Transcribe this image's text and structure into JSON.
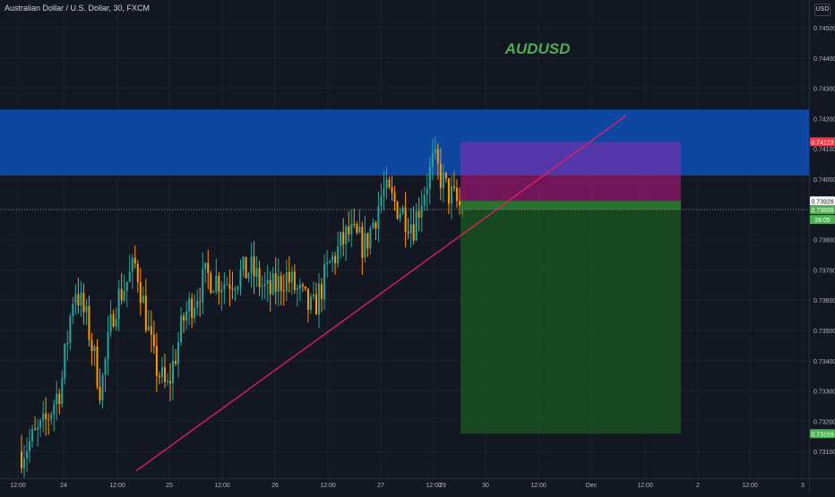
{
  "symbol_title": "Australian Dollar / U.S. Dollar, 30, FXCM",
  "currency": "USD",
  "annotation": "AUDUSD",
  "colors": {
    "background": "#131722",
    "grid": "#1e222d",
    "axis_text": "#b2b5be",
    "zone": "#0d47a1",
    "trendline": "#e91e63",
    "annotation": "#4caf50",
    "candle_up": "#26a69a",
    "candle_down": "#ff9800",
    "stop_zone": "#9c27b0",
    "stop_zone_overlap": "#880e4f",
    "target_zone": "#1b5e20",
    "target_zone_top": "#2e7d32",
    "stop_label": "#f23645",
    "entry_label": "#ffffff",
    "target_label": "#4caf50"
  },
  "chart_data": {
    "type": "candlestick",
    "symbol": "AUDUSD",
    "timeframe": "30",
    "x_tick_labels": [
      "12:00",
      "24",
      "12:00",
      "25",
      "12:00",
      "26",
      "12:00",
      "27",
      "12:00",
      "29",
      "30",
      "12:00",
      "Dec",
      "12:00",
      "2",
      "12:00",
      "3"
    ],
    "y_tick_labels": [
      "0.74500",
      "0.74400",
      "0.74300",
      "0.74200",
      "0.74100",
      "0.74000",
      "0.73900",
      "0.73800",
      "0.73700",
      "0.73600",
      "0.73500",
      "0.73400",
      "0.73300",
      "0.73200",
      "0.73100"
    ],
    "ylim": [
      0.7306,
      0.7456
    ],
    "price_trend": [
      [
        0,
        0.731
      ],
      [
        0.05,
        0.7318
      ],
      [
        0.09,
        0.7332
      ],
      [
        0.12,
        0.7365
      ],
      [
        0.15,
        0.7352
      ],
      [
        0.18,
        0.733
      ],
      [
        0.21,
        0.7358
      ],
      [
        0.26,
        0.7372
      ],
      [
        0.3,
        0.734
      ],
      [
        0.33,
        0.733
      ],
      [
        0.37,
        0.7355
      ],
      [
        0.42,
        0.7368
      ],
      [
        0.46,
        0.7366
      ],
      [
        0.52,
        0.737
      ],
      [
        0.56,
        0.7362
      ],
      [
        0.6,
        0.7368
      ],
      [
        0.64,
        0.736
      ],
      [
        0.66,
        0.7356
      ],
      [
        0.7,
        0.7372
      ],
      [
        0.74,
        0.7382
      ],
      [
        0.78,
        0.7378
      ],
      [
        0.82,
        0.7396
      ],
      [
        0.86,
        0.739
      ],
      [
        0.89,
        0.7385
      ],
      [
        0.91,
        0.7395
      ],
      [
        0.935,
        0.7406
      ],
      [
        0.965,
        0.7396
      ],
      [
        1.0,
        0.73899
      ]
    ],
    "resistance_zone": [
      0.74012,
      0.7423
    ],
    "trendline": [
      [
        0.73036,
        0.73036
      ],
      [
        0.7392,
        0.7421
      ]
    ],
    "position": {
      "stop": 0.74123,
      "entry": 0.73928,
      "current": 0.73899,
      "target": 0.73159
    },
    "price_labels": {
      "stop": "0.74123",
      "entry": "0.73928",
      "current": "0.73899",
      "countdown": "28:05",
      "target": "0.73159"
    }
  }
}
